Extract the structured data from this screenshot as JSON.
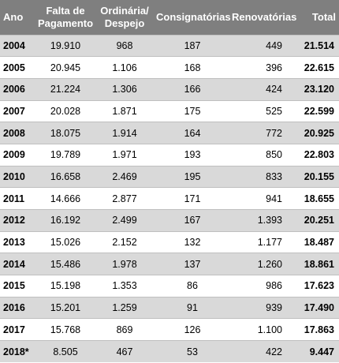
{
  "headers": {
    "ano": "Ano",
    "falta_line1": "Falta de",
    "falta_line2": "Pagamento",
    "ordinaria_line1": "Ordinária/",
    "ordinaria_line2": "Despejo",
    "consignatorias": "Consignatórias",
    "renovatorias": "Renovatórias",
    "total": "Total"
  },
  "rows": [
    {
      "ano": "2004",
      "falta": "19.910",
      "ordinaria": "968",
      "consignatorias": "187",
      "renovatorias": "449",
      "total": "21.514"
    },
    {
      "ano": "2005",
      "falta": "20.945",
      "ordinaria": "1.106",
      "consignatorias": "168",
      "renovatorias": "396",
      "total": "22.615"
    },
    {
      "ano": "2006",
      "falta": "21.224",
      "ordinaria": "1.306",
      "consignatorias": "166",
      "renovatorias": "424",
      "total": "23.120"
    },
    {
      "ano": "2007",
      "falta": "20.028",
      "ordinaria": "1.871",
      "consignatorias": "175",
      "renovatorias": "525",
      "total": "22.599"
    },
    {
      "ano": "2008",
      "falta": "18.075",
      "ordinaria": "1.914",
      "consignatorias": "164",
      "renovatorias": "772",
      "total": "20.925"
    },
    {
      "ano": "2009",
      "falta": "19.789",
      "ordinaria": "1.971",
      "consignatorias": "193",
      "renovatorias": "850",
      "total": "22.803"
    },
    {
      "ano": "2010",
      "falta": "16.658",
      "ordinaria": "2.469",
      "consignatorias": "195",
      "renovatorias": "833",
      "total": "20.155"
    },
    {
      "ano": "2011",
      "falta": "14.666",
      "ordinaria": "2.877",
      "consignatorias": "171",
      "renovatorias": "941",
      "total": "18.655"
    },
    {
      "ano": "2012",
      "falta": "16.192",
      "ordinaria": "2.499",
      "consignatorias": "167",
      "renovatorias": "1.393",
      "total": "20.251"
    },
    {
      "ano": "2013",
      "falta": "15.026",
      "ordinaria": "2.152",
      "consignatorias": "132",
      "renovatorias": "1.177",
      "total": "18.487"
    },
    {
      "ano": "2014",
      "falta": "15.486",
      "ordinaria": "1.978",
      "consignatorias": "137",
      "renovatorias": "1.260",
      "total": "18.861"
    },
    {
      "ano": "2015",
      "falta": "15.198",
      "ordinaria": "1.353",
      "consignatorias": "86",
      "renovatorias": "986",
      "total": "17.623"
    },
    {
      "ano": "2016",
      "falta": "15.201",
      "ordinaria": "1.259",
      "consignatorias": "91",
      "renovatorias": "939",
      "total": "17.490"
    },
    {
      "ano": "2017",
      "falta": "15.768",
      "ordinaria": "869",
      "consignatorias": "126",
      "renovatorias": "1.100",
      "total": "17.863"
    },
    {
      "ano": "2018*",
      "falta": "8.505",
      "ordinaria": "467",
      "consignatorias": "53",
      "renovatorias": "422",
      "total": "9.447"
    }
  ]
}
